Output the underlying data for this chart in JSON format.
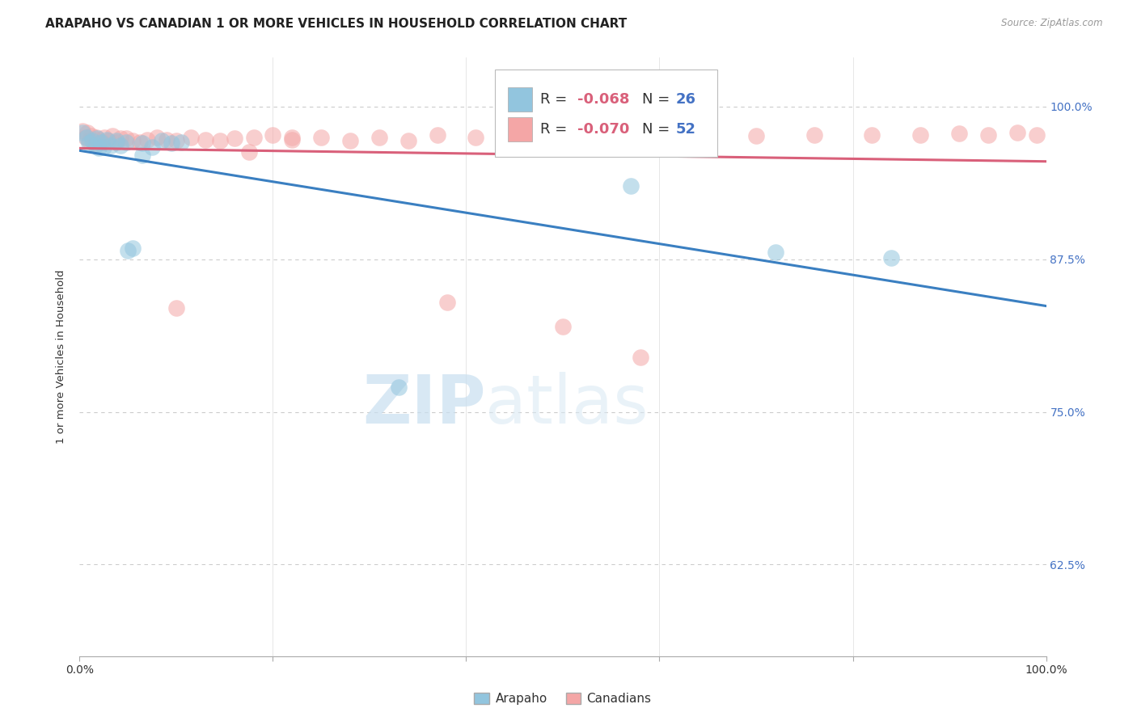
{
  "title": "ARAPAHO VS CANADIAN 1 OR MORE VEHICLES IN HOUSEHOLD CORRELATION CHART",
  "source": "Source: ZipAtlas.com",
  "ylabel": "1 or more Vehicles in Household",
  "watermark_zip": "ZIP",
  "watermark_atlas": "atlas",
  "xlim": [
    0.0,
    1.0
  ],
  "ylim": [
    0.55,
    1.04
  ],
  "yticks": [
    0.625,
    0.75,
    0.875,
    1.0
  ],
  "ytick_labels": [
    "62.5%",
    "75.0%",
    "87.5%",
    "100.0%"
  ],
  "xticks": [
    0.0,
    0.2,
    0.4,
    0.6,
    0.8,
    1.0
  ],
  "legend_R_arapaho": "-0.068",
  "legend_N_arapaho": "26",
  "legend_R_canadian": "-0.070",
  "legend_N_canadian": "52",
  "arapaho_color": "#92c5de",
  "canadian_color": "#f4a6a6",
  "arapaho_line_color": "#3a7fc1",
  "canadian_line_color": "#d9607a",
  "arapaho_x": [
    0.003,
    0.007,
    0.01,
    0.013,
    0.016,
    0.018,
    0.02,
    0.022,
    0.025,
    0.028,
    0.032,
    0.038,
    0.042,
    0.048,
    0.055,
    0.065,
    0.075,
    0.085,
    0.095,
    0.105,
    0.05,
    0.065,
    0.33,
    0.57,
    0.72,
    0.84
  ],
  "arapaho_y": [
    0.979,
    0.975,
    0.97,
    0.972,
    0.968,
    0.974,
    0.966,
    0.971,
    0.967,
    0.973,
    0.968,
    0.972,
    0.968,
    0.971,
    0.884,
    0.97,
    0.967,
    0.972,
    0.97,
    0.971,
    0.882,
    0.96,
    0.77,
    0.935,
    0.881,
    0.876
  ],
  "canadian_x": [
    0.003,
    0.006,
    0.008,
    0.01,
    0.012,
    0.015,
    0.017,
    0.02,
    0.023,
    0.026,
    0.03,
    0.034,
    0.038,
    0.042,
    0.048,
    0.055,
    0.062,
    0.07,
    0.08,
    0.09,
    0.1,
    0.115,
    0.13,
    0.145,
    0.16,
    0.18,
    0.2,
    0.22,
    0.25,
    0.28,
    0.31,
    0.34,
    0.37,
    0.41,
    0.46,
    0.52,
    0.57,
    0.63,
    0.7,
    0.76,
    0.82,
    0.87,
    0.91,
    0.94,
    0.97,
    0.99,
    0.175,
    0.22,
    0.38,
    0.5,
    0.58,
    0.1
  ],
  "canadian_y": [
    0.98,
    0.975,
    0.979,
    0.972,
    0.976,
    0.97,
    0.975,
    0.973,
    0.971,
    0.975,
    0.972,
    0.976,
    0.971,
    0.974,
    0.974,
    0.972,
    0.971,
    0.973,
    0.975,
    0.973,
    0.972,
    0.975,
    0.973,
    0.972,
    0.974,
    0.975,
    0.977,
    0.973,
    0.975,
    0.972,
    0.975,
    0.972,
    0.977,
    0.975,
    0.975,
    0.974,
    0.976,
    0.978,
    0.976,
    0.977,
    0.977,
    0.977,
    0.978,
    0.977,
    0.979,
    0.977,
    0.963,
    0.975,
    0.84,
    0.82,
    0.795,
    0.835
  ],
  "background_color": "#ffffff",
  "grid_color": "#cccccc",
  "title_fontsize": 11,
  "axis_label_fontsize": 9.5,
  "tick_fontsize": 10,
  "legend_fontsize": 14
}
